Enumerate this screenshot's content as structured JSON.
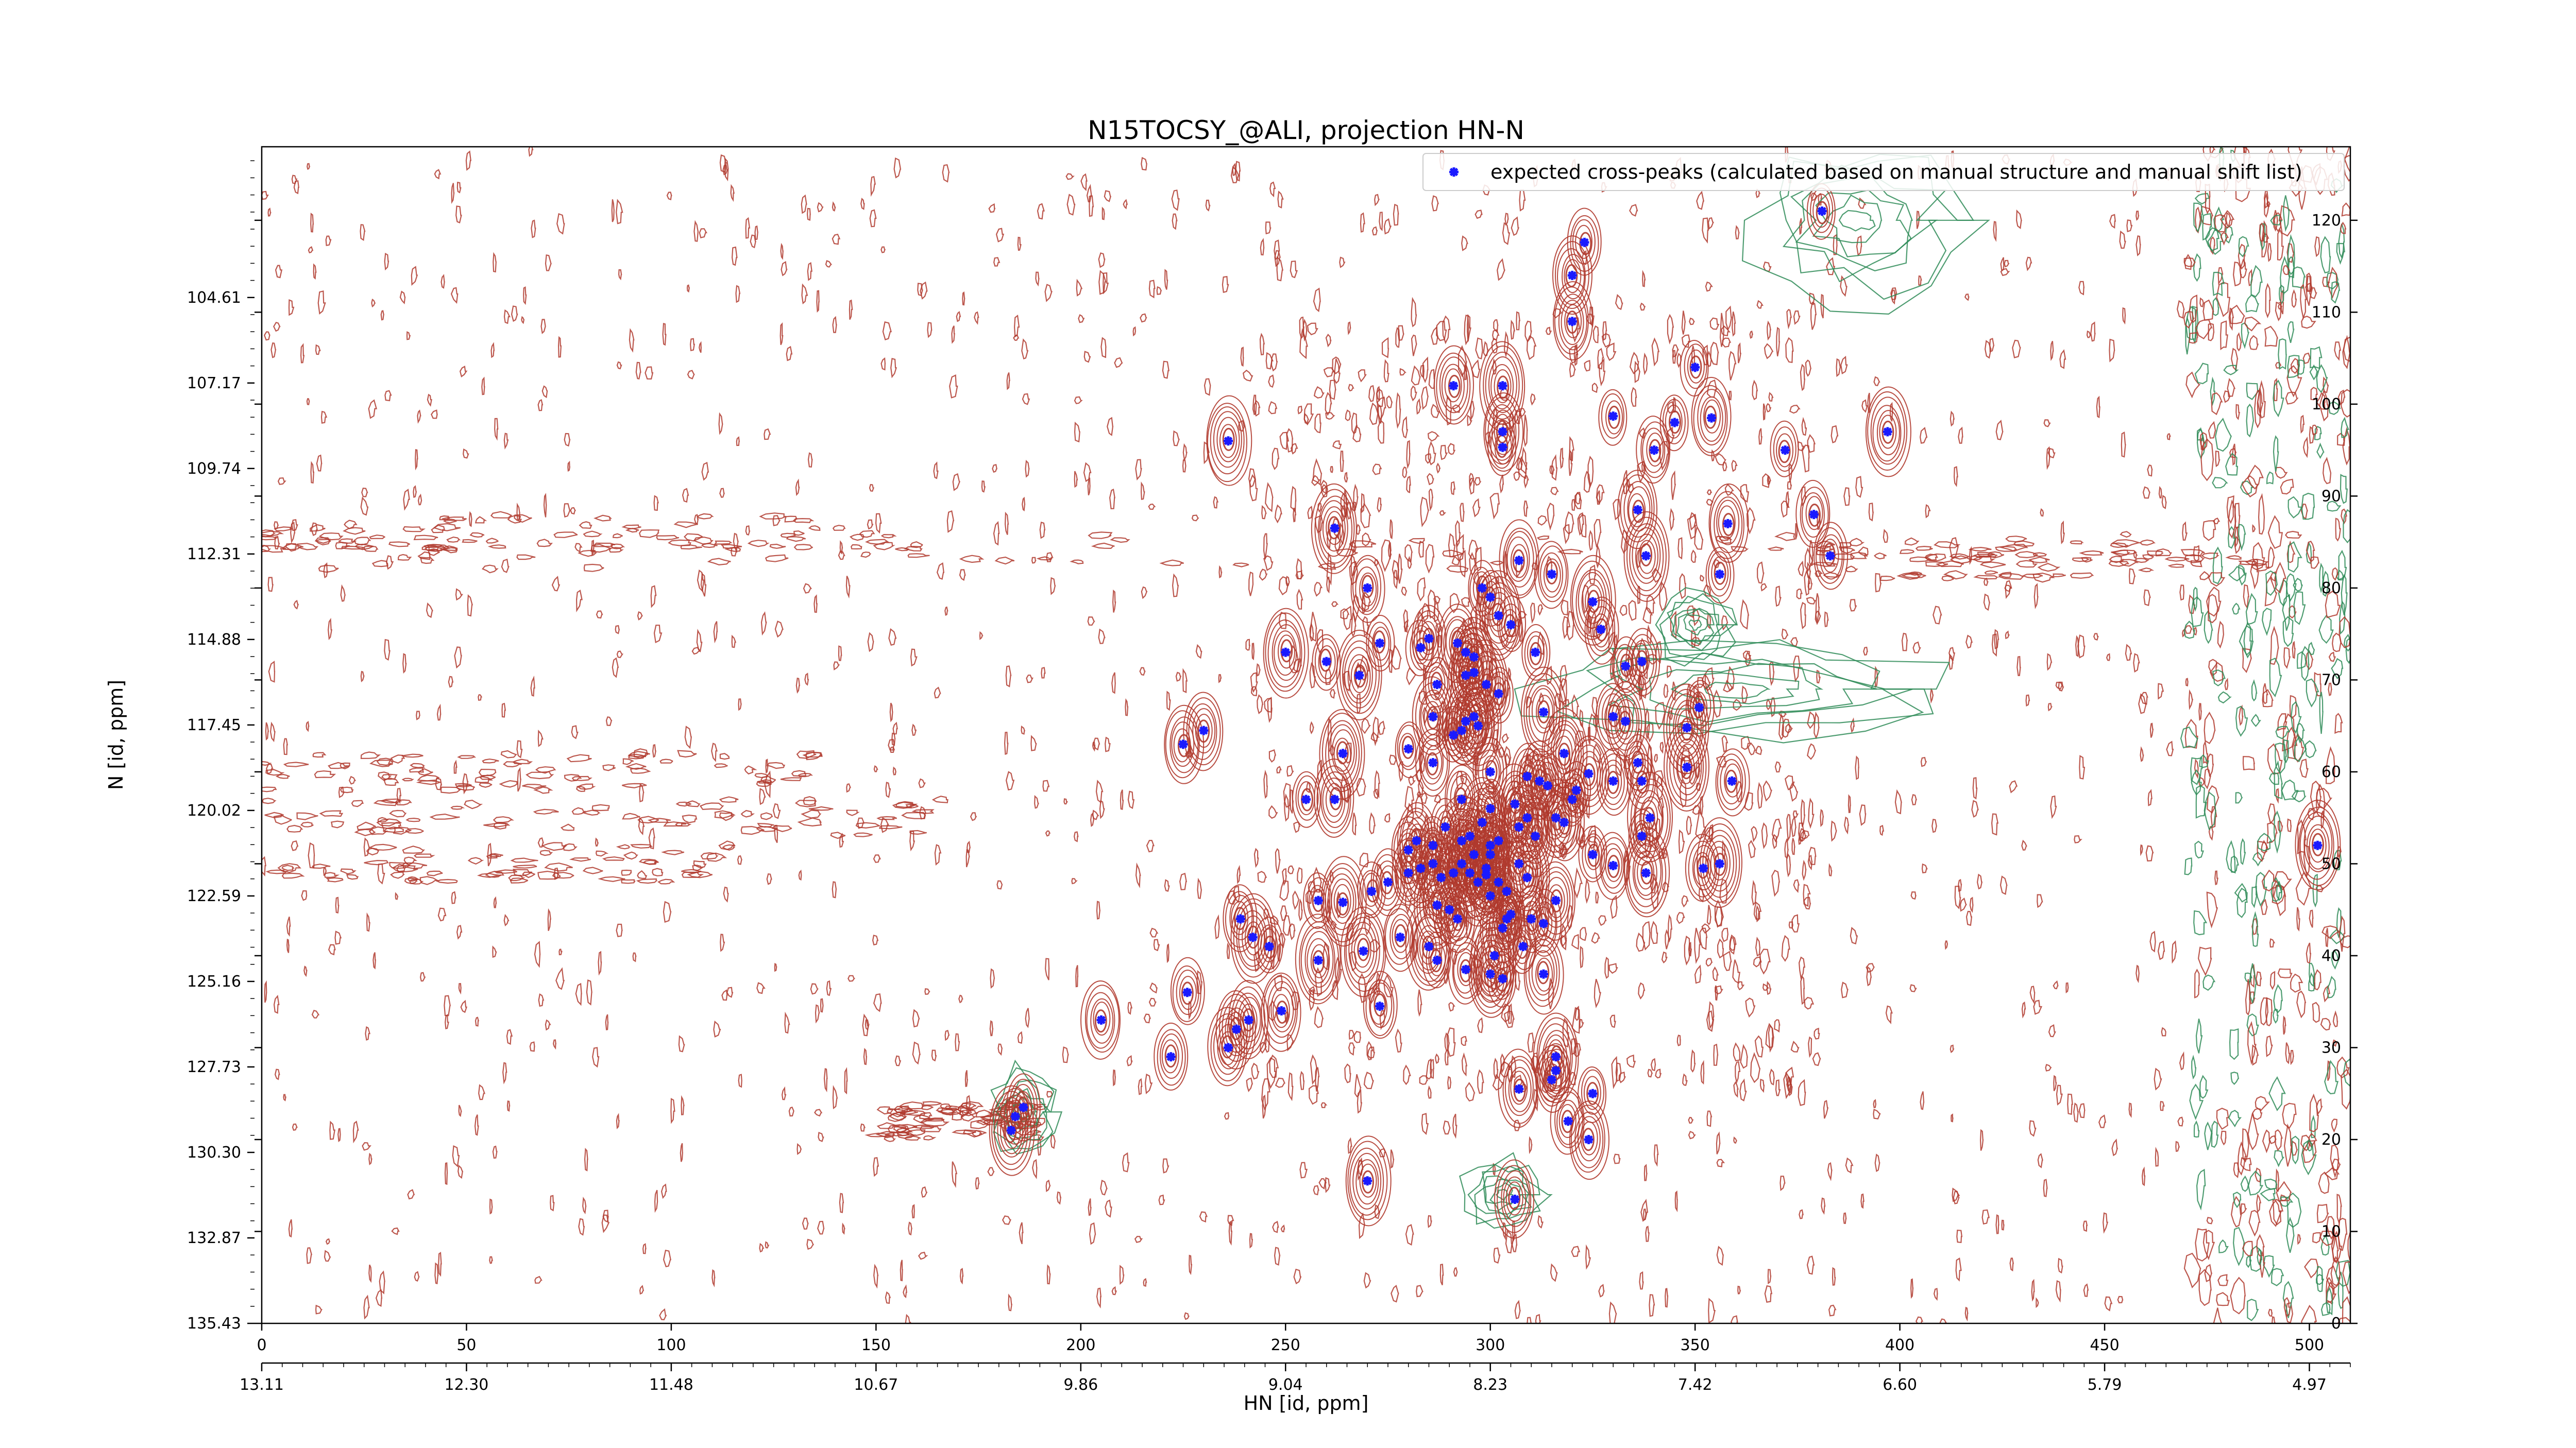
{
  "chart_data": {
    "type": "scatter",
    "title": "N15TOCSY_@ALI, projection HN-N",
    "xlabel": "HN [id, ppm]",
    "ylabel": "N [id, ppm]",
    "xlim": [
      0,
      510
    ],
    "ylim": [
      0,
      128
    ],
    "x_ticks_index": [
      0,
      50,
      100,
      150,
      200,
      250,
      300,
      350,
      400,
      450,
      500
    ],
    "x_ticks_ppm": [
      {
        "pos": 0,
        "label": "13.11"
      },
      {
        "pos": 50,
        "label": "12.30"
      },
      {
        "pos": 100,
        "label": "11.48"
      },
      {
        "pos": 150,
        "label": "10.67"
      },
      {
        "pos": 200,
        "label": "9.86"
      },
      {
        "pos": 250,
        "label": "9.04"
      },
      {
        "pos": 300,
        "label": "8.23"
      },
      {
        "pos": 350,
        "label": "7.42"
      },
      {
        "pos": 400,
        "label": "6.60"
      },
      {
        "pos": 450,
        "label": "5.79"
      },
      {
        "pos": 500,
        "label": "4.97"
      }
    ],
    "y_ticks_index": [
      0,
      10,
      20,
      30,
      40,
      50,
      60,
      70,
      80,
      90,
      100,
      110,
      120
    ],
    "y_ticks_ppm": [
      {
        "pos": 0,
        "label": "135.43"
      },
      {
        "pos": 9.3,
        "label": "132.87"
      },
      {
        "pos": 18.6,
        "label": "130.30"
      },
      {
        "pos": 27.9,
        "label": "127.73"
      },
      {
        "pos": 37.2,
        "label": "125.16"
      },
      {
        "pos": 46.5,
        "label": "122.59"
      },
      {
        "pos": 55.8,
        "label": "120.02"
      },
      {
        "pos": 65.1,
        "label": "117.45"
      },
      {
        "pos": 74.4,
        "label": "114.88"
      },
      {
        "pos": 83.7,
        "label": "112.31"
      },
      {
        "pos": 93.0,
        "label": "109.74"
      },
      {
        "pos": 102.3,
        "label": "107.17"
      },
      {
        "pos": 111.6,
        "label": "104.61"
      }
    ],
    "legend_position": "top-right",
    "grid": false,
    "colors": {
      "positive_contour": "#b03a2e",
      "negative_contour": "#2e8b57",
      "marker": "#1a1aff"
    },
    "series": [
      {
        "name": "expected cross-peaks (calculated based on manual structure and manual shift list)",
        "points": [
          [
            381,
            121
          ],
          [
            323,
            117.6
          ],
          [
            320,
            114
          ],
          [
            320,
            109
          ],
          [
            350,
            104
          ],
          [
            291,
            102
          ],
          [
            303,
            102
          ],
          [
            330,
            98.7
          ],
          [
            345,
            98
          ],
          [
            354,
            98.5
          ],
          [
            397,
            97
          ],
          [
            340,
            95
          ],
          [
            372,
            95
          ],
          [
            303,
            97
          ],
          [
            303,
            95.3
          ],
          [
            236,
            96
          ],
          [
            262,
            86.5
          ],
          [
            336,
            88.5
          ],
          [
            358,
            87
          ],
          [
            379,
            88
          ],
          [
            338,
            83.5
          ],
          [
            383,
            83.5
          ],
          [
            307,
            83
          ],
          [
            315,
            81.5
          ],
          [
            356,
            81.5
          ],
          [
            270,
            80
          ],
          [
            298,
            80
          ],
          [
            300,
            79
          ],
          [
            325,
            78.5
          ],
          [
            302,
            77
          ],
          [
            305,
            76
          ],
          [
            327,
            75.5
          ],
          [
            250,
            73
          ],
          [
            273,
            74
          ],
          [
            283,
            73.5
          ],
          [
            285,
            74.5
          ],
          [
            292,
            74
          ],
          [
            294,
            73
          ],
          [
            296,
            72.5
          ],
          [
            311,
            73
          ],
          [
            333,
            71.5
          ],
          [
            337,
            72
          ],
          [
            260,
            72
          ],
          [
            268,
            70.5
          ],
          [
            287,
            69.5
          ],
          [
            294,
            70.5
          ],
          [
            296,
            70.8
          ],
          [
            299,
            69.5
          ],
          [
            302,
            68.5
          ],
          [
            313,
            66.5
          ],
          [
            330,
            66
          ],
          [
            333,
            65.5
          ],
          [
            348,
            64.8
          ],
          [
            351,
            67
          ],
          [
            230,
            64.5
          ],
          [
            225,
            63
          ],
          [
            264,
            62
          ],
          [
            286,
            66
          ],
          [
            291,
            64
          ],
          [
            293,
            64.5
          ],
          [
            294,
            65.5
          ],
          [
            296,
            66
          ],
          [
            297,
            65
          ],
          [
            280,
            62.5
          ],
          [
            318,
            62
          ],
          [
            336,
            61
          ],
          [
            348,
            60.5
          ],
          [
            337,
            59
          ],
          [
            359,
            59
          ],
          [
            330,
            59
          ],
          [
            255,
            57
          ],
          [
            262,
            57
          ],
          [
            286,
            61
          ],
          [
            300,
            60
          ],
          [
            309,
            59.5
          ],
          [
            312,
            59
          ],
          [
            314,
            58.5
          ],
          [
            321,
            58
          ],
          [
            324,
            59.8
          ],
          [
            293,
            57
          ],
          [
            300,
            56
          ],
          [
            306,
            56.5
          ],
          [
            307,
            54
          ],
          [
            309,
            55
          ],
          [
            311,
            53
          ],
          [
            316,
            55
          ],
          [
            318,
            54.5
          ],
          [
            320,
            57
          ],
          [
            298,
            54.5
          ],
          [
            295,
            53
          ],
          [
            293,
            52.5
          ],
          [
            289,
            54
          ],
          [
            286,
            52
          ],
          [
            282,
            52.5
          ],
          [
            280,
            51.5
          ],
          [
            299,
            49.5
          ],
          [
            300,
            51
          ],
          [
            300,
            52
          ],
          [
            302,
            52.5
          ],
          [
            307,
            50
          ],
          [
            309,
            48.5
          ],
          [
            304,
            47
          ],
          [
            302,
            48
          ],
          [
            337,
            53
          ],
          [
            339,
            55
          ],
          [
            325,
            51
          ],
          [
            330,
            49.8
          ],
          [
            352,
            49.5
          ],
          [
            356,
            50
          ],
          [
            338,
            49
          ],
          [
            293,
            50
          ],
          [
            295,
            49
          ],
          [
            296,
            51
          ],
          [
            297,
            48
          ],
          [
            291,
            49
          ],
          [
            288,
            48.5
          ],
          [
            286,
            50
          ],
          [
            283,
            49.5
          ],
          [
            280,
            49
          ],
          [
            275,
            48
          ],
          [
            271,
            47
          ],
          [
            258,
            46
          ],
          [
            264,
            45.8
          ],
          [
            287,
            45.5
          ],
          [
            290,
            45
          ],
          [
            292,
            44
          ],
          [
            305,
            44.5
          ],
          [
            310,
            44
          ],
          [
            316,
            46
          ],
          [
            313,
            43.5
          ],
          [
            299,
            48.8
          ],
          [
            300,
            46.5
          ],
          [
            304,
            44
          ],
          [
            303,
            43
          ],
          [
            308,
            41
          ],
          [
            301,
            40
          ],
          [
            239,
            44
          ],
          [
            242,
            42
          ],
          [
            246,
            41
          ],
          [
            258,
            39.5
          ],
          [
            269,
            40.5
          ],
          [
            278,
            42
          ],
          [
            285,
            41
          ],
          [
            287,
            39.5
          ],
          [
            294,
            38.5
          ],
          [
            300,
            38
          ],
          [
            303,
            37.5
          ],
          [
            313,
            38
          ],
          [
            226,
            36
          ],
          [
            238,
            32
          ],
          [
            241,
            33
          ],
          [
            249,
            34
          ],
          [
            273,
            34.5
          ],
          [
            205,
            33
          ],
          [
            222,
            29
          ],
          [
            236,
            30
          ],
          [
            316,
            29
          ],
          [
            316,
            27.5
          ],
          [
            315,
            26.5
          ],
          [
            307,
            25.5
          ],
          [
            325,
            25
          ],
          [
            319,
            22
          ],
          [
            324,
            20
          ],
          [
            186,
            23.5
          ],
          [
            184,
            22.5
          ],
          [
            183,
            21
          ],
          [
            270,
            15.5
          ],
          [
            306,
            13.5
          ],
          [
            502,
            52
          ]
        ]
      }
    ]
  }
}
